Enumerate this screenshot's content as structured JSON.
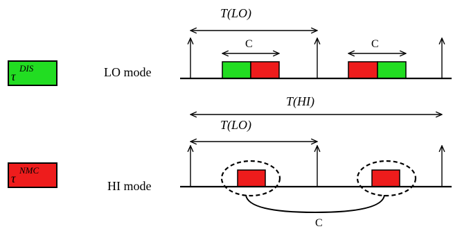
{
  "legend": {
    "dis": {
      "base": "τ",
      "sup": "DIS",
      "color": "#22dd22"
    },
    "nmc": {
      "base": "τ",
      "sup": "NMC",
      "color": "#ee1c1c"
    }
  },
  "lo_mode": {
    "label": "LO mode",
    "period_label": "T(LO)",
    "job_labels": [
      "C",
      "C"
    ]
  },
  "hi_mode": {
    "label": "HI mode",
    "period_hi_label": "T(HI)",
    "period_lo_label": "T(LO)",
    "job_label": "C"
  },
  "colors": {
    "green": "#22dd22",
    "red": "#ee1c1c",
    "stroke": "#000000"
  }
}
